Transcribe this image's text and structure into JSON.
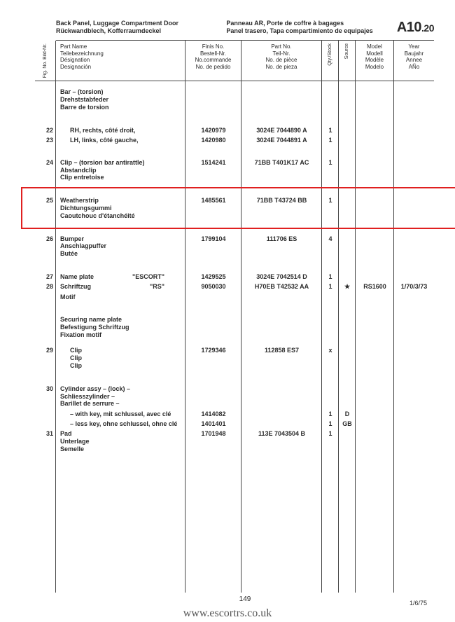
{
  "header": {
    "title_en": "Back Panel, Luggage Compartment Door",
    "title_de": "Rückwandblech, Kofferraumdeckel",
    "title_fr": "Panneau AR, Porte de coffre à bagages",
    "title_es": "Panel trasero, Tapa compartimiento de equipajes",
    "page_code_main": "A10",
    "page_code_sub": ".20"
  },
  "columns": {
    "fig": "Fig. No.\nBild-Nr.",
    "name": "Part Name\nTeilebezeichnung\nDésignation\nDesignación",
    "finis": "Finis No.\nBestell-Nr.\nNo.commande\nNo. de pedido",
    "partno": "Part No.\nTeil-Nr.\nNo. de pièce\nNo. de pieza",
    "qty": "Qty./Stock",
    "source": "Source",
    "model": "Model\nModell\nModèle\nModelo",
    "year": "Year\nBaujahr\nAnnee\nAÑo"
  },
  "rows": [
    {
      "type": "group",
      "lines": [
        "Bar – (torsion)",
        "Drehststabfeder",
        "Barre de torsion"
      ]
    },
    {
      "type": "spacer"
    },
    {
      "fig": "22",
      "name": "RH, rechts, côté droit,",
      "indent": true,
      "finis": "1420979",
      "partno": "3024E 7044890 A",
      "qty": "1"
    },
    {
      "fig": "23",
      "name": "LH, links, côté gauche,",
      "indent": true,
      "finis": "1420980",
      "partno": "3024E 7044891 A",
      "qty": "1"
    },
    {
      "type": "spacer"
    },
    {
      "fig": "24",
      "lines": [
        "Clip – (torsion bar antirattle)",
        "Abstandclip",
        "Clip entretoise"
      ],
      "finis": "1514241",
      "partno": "71BB T401K17 AC",
      "qty": "1"
    },
    {
      "type": "spacer"
    },
    {
      "fig": "25",
      "lines": [
        "Weatherstrip",
        "Dichtungsgummi",
        "Caoutchouc d'étanchéité"
      ],
      "finis": "1485561",
      "partno": "71BB T43724 BB",
      "qty": "1",
      "highlight": true
    },
    {
      "type": "spacer"
    },
    {
      "fig": "26",
      "lines": [
        "Bumper",
        "Anschlagpuffer",
        "Butée"
      ],
      "finis": "1799104",
      "partno": "111706 ES",
      "qty": "4"
    },
    {
      "type": "spacer"
    },
    {
      "fig": "27",
      "name": "Name plate",
      "extra": "\"ESCORT\"",
      "finis": "1429525",
      "partno": "3024E 7042514 D",
      "qty": "1"
    },
    {
      "fig": "28",
      "name": "Schriftzug",
      "extra": "\"RS\"",
      "finis": "9050030",
      "partno": "H70EB T42532 AA",
      "qty": "1",
      "src": "★",
      "model": "RS1600",
      "year": "1/70/3/73"
    },
    {
      "name": "Motif"
    },
    {
      "type": "spacer"
    },
    {
      "type": "group",
      "lines": [
        "Securing name plate",
        "Befestigung Schriftzug",
        "Fixation motif"
      ]
    },
    {
      "type": "spacer-sm"
    },
    {
      "fig": "29",
      "lines": [
        "Clip",
        "Clip",
        "Clip"
      ],
      "indent": true,
      "finis": "1729346",
      "partno": "112858 ES7",
      "qty": "x"
    },
    {
      "type": "spacer"
    },
    {
      "fig": "30",
      "lines": [
        "Cylinder assy – (lock) –",
        "Schliesszylinder –",
        "Barillet de serrure –"
      ]
    },
    {
      "name": "– with key, mit schlussel, avec clé",
      "indent": true,
      "finis": "1414082",
      "qty": "1",
      "src": "D"
    },
    {
      "name": "– less key, ohne schlussel, ohne clé",
      "indent": true,
      "finis": "1401401",
      "qty": "1",
      "src": "GB"
    },
    {
      "fig": "31",
      "lines": [
        "Pad",
        "Unterlage",
        "Semelle"
      ],
      "finis": "1701948",
      "partno": "113E 7043504 B",
      "qty": "1"
    }
  ],
  "footer": {
    "page_num": "149",
    "watermark": "www.escortrs.co.uk",
    "date": "1/6/75"
  },
  "style": {
    "highlight_color": "#e02020",
    "rule_color": "#444444",
    "text_color": "#2a2a2a",
    "background": "#ffffff"
  }
}
